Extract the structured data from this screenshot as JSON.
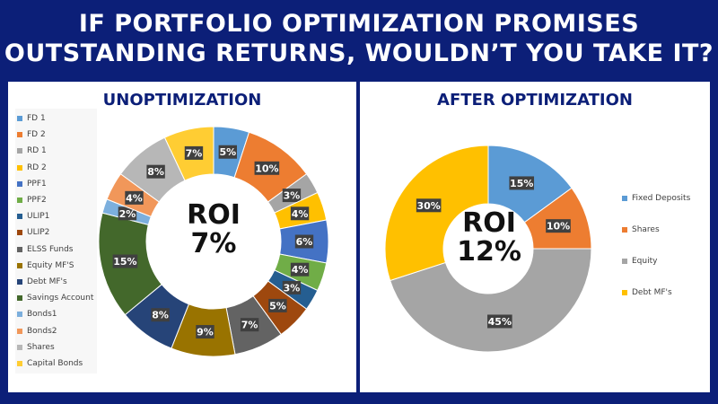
{
  "headline": {
    "line1": "IF PORTFOLIO OPTIMIZATION PROMISES",
    "line2": "OUTSTANDING RETURNS, WOULDN’T YOU TAKE IT?"
  },
  "chart_data": [
    {
      "type": "pie",
      "variant": "donut",
      "title": "UNOPTIMIZATION",
      "center_label": [
        "ROI",
        "7%"
      ],
      "legend_position": "left",
      "slices": [
        {
          "label": "FD 1",
          "value": 5,
          "display": "5%",
          "color": "#5b9bd5"
        },
        {
          "label": "FD 2",
          "value": 10,
          "display": "10%",
          "color": "#ed7d31"
        },
        {
          "label": "RD 1",
          "value": 3,
          "display": "3%",
          "color": "#a5a5a5"
        },
        {
          "label": "RD 2",
          "value": 4,
          "display": "4%",
          "color": "#ffc000"
        },
        {
          "label": "PPF1",
          "value": 6,
          "display": "6%",
          "color": "#4472c4"
        },
        {
          "label": "PPF2",
          "value": 4,
          "display": "4%",
          "color": "#70ad47"
        },
        {
          "label": "ULIP1",
          "value": 3,
          "display": "3%",
          "color": "#255e91"
        },
        {
          "label": "ULIP2",
          "value": 5,
          "display": "5%",
          "color": "#9e480e"
        },
        {
          "label": "ELSS Funds",
          "value": 7,
          "display": "7%",
          "color": "#636363"
        },
        {
          "label": "Equity MF'S",
          "value": 9,
          "display": "9%",
          "color": "#997300"
        },
        {
          "label": "Debt MF's",
          "value": 8,
          "display": "8%",
          "color": "#264478"
        },
        {
          "label": "Savings Account",
          "value": 15,
          "display": "15%",
          "color": "#43682b"
        },
        {
          "label": "Bonds1",
          "value": 2,
          "display": "2%",
          "color": "#7cafdd"
        },
        {
          "label": "Bonds2",
          "value": 4,
          "display": "4%",
          "color": "#f1975a"
        },
        {
          "label": "Shares",
          "value": 8,
          "display": "8%",
          "color": "#b7b7b7"
        },
        {
          "label": "Capital Bonds",
          "value": 7,
          "display": "7%",
          "color": "#ffcd33"
        }
      ]
    },
    {
      "type": "pie",
      "variant": "donut",
      "title": "AFTER OPTIMIZATION",
      "center_label": [
        "ROI",
        "12%"
      ],
      "legend_position": "right",
      "slices": [
        {
          "label": "Fixed Deposits",
          "value": 15,
          "display": "15%",
          "color": "#5b9bd5"
        },
        {
          "label": "Shares",
          "value": 10,
          "display": "10%",
          "color": "#ed7d31"
        },
        {
          "label": "Equity",
          "value": 45,
          "display": "45%",
          "color": "#a5a5a5"
        },
        {
          "label": "Debt MF's",
          "value": 30,
          "display": "30%",
          "color": "#ffc000"
        }
      ]
    }
  ]
}
